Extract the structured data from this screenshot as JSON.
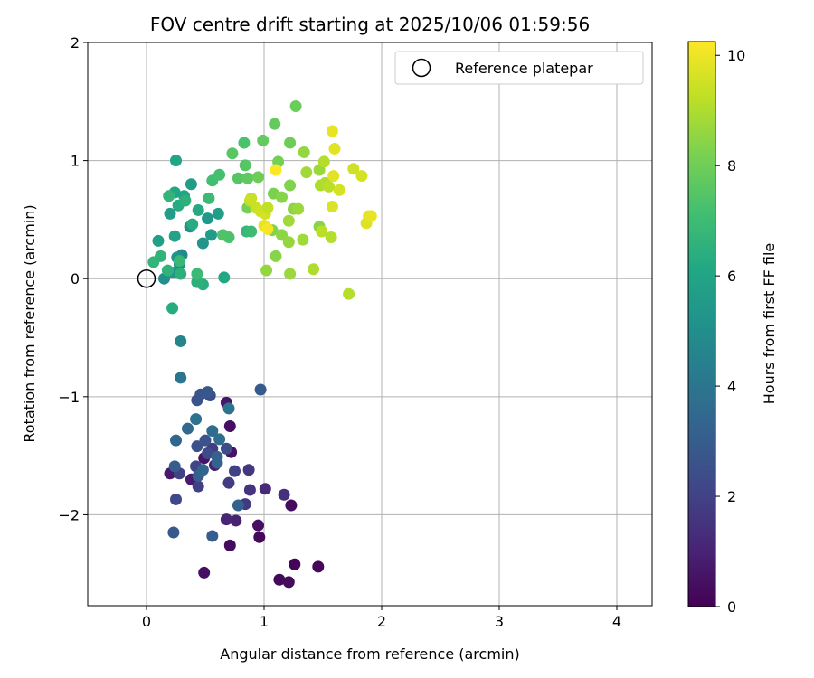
{
  "chart_data": {
    "type": "scatter",
    "title": "FOV centre drift starting at 2025/10/06 01:59:56",
    "xlabel": "Angular distance from reference (arcmin)",
    "ylabel": "Rotation from reference (arcmin)",
    "xlim": [
      -0.5,
      4.3
    ],
    "ylim": [
      -2.77,
      2.0
    ],
    "xticks": [
      0,
      1,
      2,
      3,
      4
    ],
    "xtick_labels": [
      "0",
      "1",
      "2",
      "3",
      "4"
    ],
    "yticks": [
      -2,
      -1,
      0,
      1,
      2
    ],
    "ytick_labels": [
      "−2",
      "−1",
      "0",
      "1",
      "2"
    ],
    "grid": true,
    "legend": {
      "placement": "top-right",
      "entries": [
        {
          "label": "Reference platepar",
          "marker": "open-circle"
        }
      ]
    },
    "reference_point": {
      "x": 0,
      "y": 0
    },
    "colorbar": {
      "label": "Hours from first FF file",
      "colormap": "viridis",
      "range": [
        0,
        10.25
      ],
      "ticks": [
        0,
        2,
        4,
        6,
        8,
        10
      ],
      "tick_labels": [
        "0",
        "2",
        "4",
        "6",
        "8",
        "10"
      ]
    },
    "points": [
      {
        "x": 1.26,
        "y": -2.42,
        "c": 0.1
      },
      {
        "x": 1.46,
        "y": -2.44,
        "c": 0.2
      },
      {
        "x": 1.13,
        "y": -2.55,
        "c": 0.2
      },
      {
        "x": 1.21,
        "y": -2.57,
        "c": 0.3
      },
      {
        "x": 0.49,
        "y": -2.49,
        "c": 0.4
      },
      {
        "x": 0.71,
        "y": -2.26,
        "c": 0.3
      },
      {
        "x": 0.96,
        "y": -2.19,
        "c": 0.2
      },
      {
        "x": 0.95,
        "y": -2.09,
        "c": 0.4
      },
      {
        "x": 1.23,
        "y": -1.92,
        "c": 0.3
      },
      {
        "x": 0.71,
        "y": -1.25,
        "c": 0.4
      },
      {
        "x": 0.68,
        "y": -1.05,
        "c": 0.6
      },
      {
        "x": 0.72,
        "y": -1.47,
        "c": 0.5
      },
      {
        "x": 0.49,
        "y": -1.52,
        "c": 0.6
      },
      {
        "x": 0.38,
        "y": -1.7,
        "c": 0.8
      },
      {
        "x": 0.2,
        "y": -1.65,
        "c": 0.7
      },
      {
        "x": 0.58,
        "y": -1.58,
        "c": 0.9
      },
      {
        "x": 0.76,
        "y": -2.05,
        "c": 1.0
      },
      {
        "x": 0.68,
        "y": -2.04,
        "c": 1.1
      },
      {
        "x": 1.01,
        "y": -1.78,
        "c": 1.2
      },
      {
        "x": 1.17,
        "y": -1.83,
        "c": 1.4
      },
      {
        "x": 0.87,
        "y": -1.62,
        "c": 1.6
      },
      {
        "x": 0.88,
        "y": -1.79,
        "c": 1.5
      },
      {
        "x": 0.84,
        "y": -1.91,
        "c": 1.7
      },
      {
        "x": 0.56,
        "y": -1.44,
        "c": 1.8
      },
      {
        "x": 0.44,
        "y": -1.76,
        "c": 1.9
      },
      {
        "x": 0.7,
        "y": -1.73,
        "c": 1.8
      },
      {
        "x": 0.28,
        "y": -1.65,
        "c": 2.0
      },
      {
        "x": 0.25,
        "y": -1.87,
        "c": 2.2
      },
      {
        "x": 0.42,
        "y": -1.59,
        "c": 2.1
      },
      {
        "x": 0.52,
        "y": -1.48,
        "c": 2.3
      },
      {
        "x": 0.75,
        "y": -1.63,
        "c": 2.0
      },
      {
        "x": 0.68,
        "y": -1.44,
        "c": 2.4
      },
      {
        "x": 0.43,
        "y": -1.42,
        "c": 2.5
      },
      {
        "x": 0.5,
        "y": -1.37,
        "c": 2.6
      },
      {
        "x": 0.54,
        "y": -0.99,
        "c": 2.4
      },
      {
        "x": 0.43,
        "y": -1.03,
        "c": 2.6
      },
      {
        "x": 0.46,
        "y": -0.98,
        "c": 2.7
      },
      {
        "x": 0.52,
        "y": -0.96,
        "c": 2.8
      },
      {
        "x": 0.97,
        "y": -0.94,
        "c": 2.9
      },
      {
        "x": 0.23,
        "y": -2.15,
        "c": 2.9
      },
      {
        "x": 0.56,
        "y": -2.18,
        "c": 3.0
      },
      {
        "x": 0.78,
        "y": -1.92,
        "c": 3.2
      },
      {
        "x": 0.6,
        "y": -1.51,
        "c": 3.2
      },
      {
        "x": 0.6,
        "y": -1.56,
        "c": 3.3
      },
      {
        "x": 0.44,
        "y": -1.67,
        "c": 3.1
      },
      {
        "x": 0.48,
        "y": -1.62,
        "c": 3.3
      },
      {
        "x": 0.24,
        "y": -1.59,
        "c": 3.0
      },
      {
        "x": 0.25,
        "y": -1.37,
        "c": 3.4
      },
      {
        "x": 0.35,
        "y": -1.27,
        "c": 3.5
      },
      {
        "x": 0.56,
        "y": -1.29,
        "c": 3.6
      },
      {
        "x": 0.62,
        "y": -1.36,
        "c": 3.7
      },
      {
        "x": 0.42,
        "y": -1.19,
        "c": 3.8
      },
      {
        "x": 0.7,
        "y": -1.1,
        "c": 3.9
      },
      {
        "x": 0.29,
        "y": -0.84,
        "c": 4.0
      },
      {
        "x": 0.29,
        "y": -0.53,
        "c": 4.6
      },
      {
        "x": 0.3,
        "y": 0.2,
        "c": 4.8
      },
      {
        "x": 0.28,
        "y": 0.12,
        "c": 5.0
      },
      {
        "x": 0.15,
        "y": 0.0,
        "c": 5.1
      },
      {
        "x": 0.26,
        "y": 0.18,
        "c": 5.2
      },
      {
        "x": 0.37,
        "y": 0.44,
        "c": 5.0
      },
      {
        "x": 0.23,
        "y": 0.05,
        "c": 5.4
      },
      {
        "x": 0.48,
        "y": 0.3,
        "c": 5.3
      },
      {
        "x": 0.55,
        "y": 0.37,
        "c": 5.6
      },
      {
        "x": 0.52,
        "y": 0.51,
        "c": 5.5
      },
      {
        "x": 0.61,
        "y": 0.55,
        "c": 5.7
      },
      {
        "x": 0.38,
        "y": 0.8,
        "c": 5.6
      },
      {
        "x": 0.1,
        "y": 0.32,
        "c": 5.8
      },
      {
        "x": 0.24,
        "y": 0.36,
        "c": 5.9
      },
      {
        "x": 0.2,
        "y": 0.55,
        "c": 5.7
      },
      {
        "x": 0.32,
        "y": 0.7,
        "c": 6.0
      },
      {
        "x": 0.24,
        "y": 0.73,
        "c": 6.1
      },
      {
        "x": 0.25,
        "y": 1.0,
        "c": 6.0
      },
      {
        "x": 0.27,
        "y": 0.62,
        "c": 6.3
      },
      {
        "x": 0.44,
        "y": 0.58,
        "c": 6.2
      },
      {
        "x": 0.39,
        "y": 0.46,
        "c": 6.3
      },
      {
        "x": 0.66,
        "y": 0.01,
        "c": 6.1
      },
      {
        "x": 0.22,
        "y": -0.25,
        "c": 6.3
      },
      {
        "x": 0.48,
        "y": -0.05,
        "c": 6.4
      },
      {
        "x": 0.43,
        "y": -0.03,
        "c": 6.5
      },
      {
        "x": 0.29,
        "y": 0.04,
        "c": 6.5
      },
      {
        "x": 0.06,
        "y": 0.14,
        "c": 6.7
      },
      {
        "x": 0.12,
        "y": 0.19,
        "c": 6.6
      },
      {
        "x": 0.18,
        "y": 0.07,
        "c": 6.6
      },
      {
        "x": 0.28,
        "y": 0.15,
        "c": 6.8
      },
      {
        "x": 0.43,
        "y": 0.04,
        "c": 6.9
      },
      {
        "x": 0.33,
        "y": 0.66,
        "c": 6.5
      },
      {
        "x": 0.19,
        "y": 0.7,
        "c": 6.7
      },
      {
        "x": 0.53,
        "y": 0.68,
        "c": 6.9
      },
      {
        "x": 0.56,
        "y": 0.83,
        "c": 7.1
      },
      {
        "x": 0.62,
        "y": 0.88,
        "c": 7.2
      },
      {
        "x": 0.85,
        "y": 0.4,
        "c": 6.8
      },
      {
        "x": 0.89,
        "y": 0.4,
        "c": 7.0
      },
      {
        "x": 0.7,
        "y": 0.35,
        "c": 7.3
      },
      {
        "x": 0.65,
        "y": 0.37,
        "c": 7.4
      },
      {
        "x": 0.78,
        "y": 0.85,
        "c": 7.5
      },
      {
        "x": 0.83,
        "y": 1.15,
        "c": 7.3
      },
      {
        "x": 0.73,
        "y": 1.06,
        "c": 7.6
      },
      {
        "x": 0.84,
        "y": 0.96,
        "c": 7.5
      },
      {
        "x": 0.86,
        "y": 0.85,
        "c": 7.7
      },
      {
        "x": 0.99,
        "y": 1.17,
        "c": 7.8
      },
      {
        "x": 1.09,
        "y": 1.31,
        "c": 7.8
      },
      {
        "x": 1.27,
        "y": 1.46,
        "c": 7.9
      },
      {
        "x": 1.22,
        "y": 1.15,
        "c": 8.0
      },
      {
        "x": 0.95,
        "y": 0.86,
        "c": 8.0
      },
      {
        "x": 0.86,
        "y": 0.6,
        "c": 8.1
      },
      {
        "x": 1.08,
        "y": 0.72,
        "c": 8.2
      },
      {
        "x": 1.22,
        "y": 0.79,
        "c": 8.3
      },
      {
        "x": 1.15,
        "y": 0.69,
        "c": 8.4
      },
      {
        "x": 1.12,
        "y": 0.99,
        "c": 8.1
      },
      {
        "x": 1.07,
        "y": 0.41,
        "c": 8.3
      },
      {
        "x": 1.15,
        "y": 0.37,
        "c": 8.5
      },
      {
        "x": 1.21,
        "y": 0.31,
        "c": 8.6
      },
      {
        "x": 1.1,
        "y": 0.19,
        "c": 8.4
      },
      {
        "x": 1.02,
        "y": 0.07,
        "c": 8.6
      },
      {
        "x": 1.22,
        "y": 0.04,
        "c": 8.7
      },
      {
        "x": 1.25,
        "y": 0.59,
        "c": 8.5
      },
      {
        "x": 1.29,
        "y": 0.59,
        "c": 8.7
      },
      {
        "x": 1.21,
        "y": 0.49,
        "c": 8.8
      },
      {
        "x": 1.33,
        "y": 0.33,
        "c": 8.8
      },
      {
        "x": 1.34,
        "y": 1.07,
        "c": 8.6
      },
      {
        "x": 1.47,
        "y": 0.92,
        "c": 8.7
      },
      {
        "x": 1.36,
        "y": 0.9,
        "c": 8.8
      },
      {
        "x": 1.47,
        "y": 0.44,
        "c": 8.4
      },
      {
        "x": 1.48,
        "y": 0.79,
        "c": 9.0
      },
      {
        "x": 1.52,
        "y": 0.81,
        "c": 9.0
      },
      {
        "x": 1.51,
        "y": 0.99,
        "c": 9.1
      },
      {
        "x": 1.55,
        "y": 0.78,
        "c": 9.2
      },
      {
        "x": 1.49,
        "y": 0.4,
        "c": 9.2
      },
      {
        "x": 1.57,
        "y": 0.35,
        "c": 9.1
      },
      {
        "x": 1.42,
        "y": 0.08,
        "c": 9.0
      },
      {
        "x": 1.72,
        "y": -0.13,
        "c": 9.1
      },
      {
        "x": 1.76,
        "y": 0.93,
        "c": 9.5
      },
      {
        "x": 1.83,
        "y": 0.87,
        "c": 9.6
      },
      {
        "x": 1.64,
        "y": 0.75,
        "c": 9.6
      },
      {
        "x": 1.58,
        "y": 0.61,
        "c": 9.7
      },
      {
        "x": 1.59,
        "y": 0.87,
        "c": 9.8
      },
      {
        "x": 1.6,
        "y": 1.1,
        "c": 9.8
      },
      {
        "x": 1.58,
        "y": 1.25,
        "c": 9.9
      },
      {
        "x": 1.87,
        "y": 0.47,
        "c": 9.7
      },
      {
        "x": 1.89,
        "y": 0.53,
        "c": 9.8
      },
      {
        "x": 1.91,
        "y": 0.53,
        "c": 9.9
      },
      {
        "x": 0.88,
        "y": 0.66,
        "c": 9.3
      },
      {
        "x": 0.89,
        "y": 0.68,
        "c": 9.4
      },
      {
        "x": 0.93,
        "y": 0.6,
        "c": 9.4
      },
      {
        "x": 0.97,
        "y": 0.57,
        "c": 9.5
      },
      {
        "x": 1.01,
        "y": 0.55,
        "c": 9.6
      },
      {
        "x": 1.03,
        "y": 0.6,
        "c": 9.3
      },
      {
        "x": 1.0,
        "y": 0.45,
        "c": 9.9
      },
      {
        "x": 1.03,
        "y": 0.42,
        "c": 10.1
      },
      {
        "x": 1.1,
        "y": 0.92,
        "c": 10.2
      }
    ]
  }
}
